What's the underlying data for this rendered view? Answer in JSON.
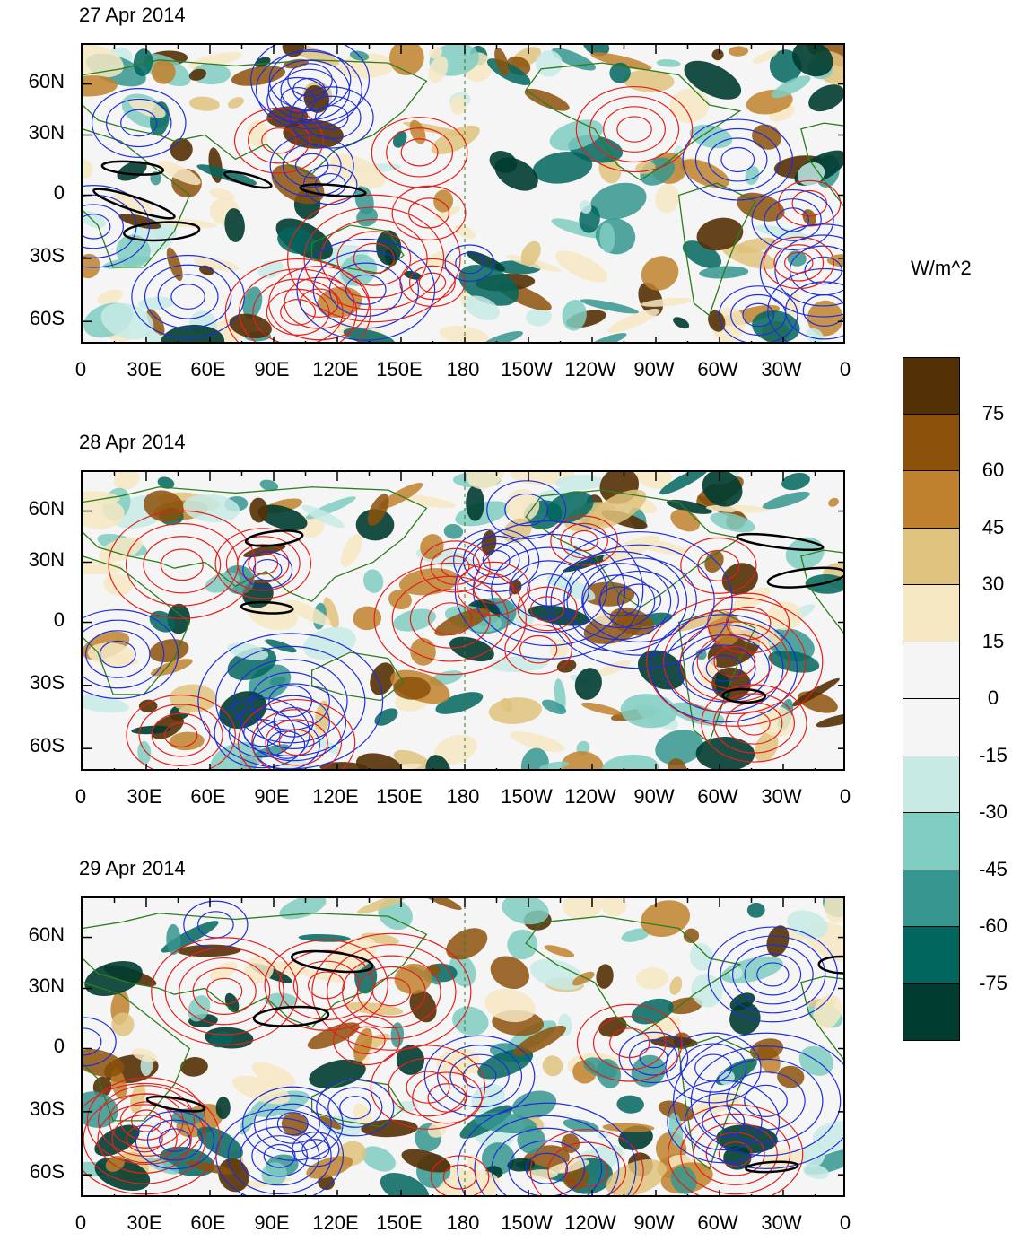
{
  "panels": [
    {
      "title": "27 Apr 2014"
    },
    {
      "title": "28 Apr 2014"
    },
    {
      "title": "29 Apr 2014"
    }
  ],
  "y_ticks": [
    "60N",
    "30N",
    "0",
    "30S",
    "60S"
  ],
  "x_ticks": [
    "0",
    "30E",
    "60E",
    "90E",
    "120E",
    "150E",
    "180",
    "150W",
    "120W",
    "90W",
    "60W",
    "30W",
    "0"
  ],
  "colorbar": {
    "units": "W/m^2",
    "labels": [
      "75",
      "60",
      "45",
      "30",
      "15",
      "0",
      "-15",
      "-30",
      "-45",
      "-60",
      "-75"
    ],
    "colors": [
      "#543005",
      "#8c510a",
      "#bf812d",
      "#dfc27d",
      "#f6e8c3",
      "#f5f5f5",
      "#f5f5f5",
      "#c7eae5",
      "#80cdc1",
      "#35978f",
      "#01665e",
      "#003c30"
    ]
  },
  "styles": {
    "positive_contour": "#e3201b",
    "negative_contour": "#1f2fd6",
    "highlight_contour": "#000000",
    "coastline": "#2e7d1e"
  }
}
